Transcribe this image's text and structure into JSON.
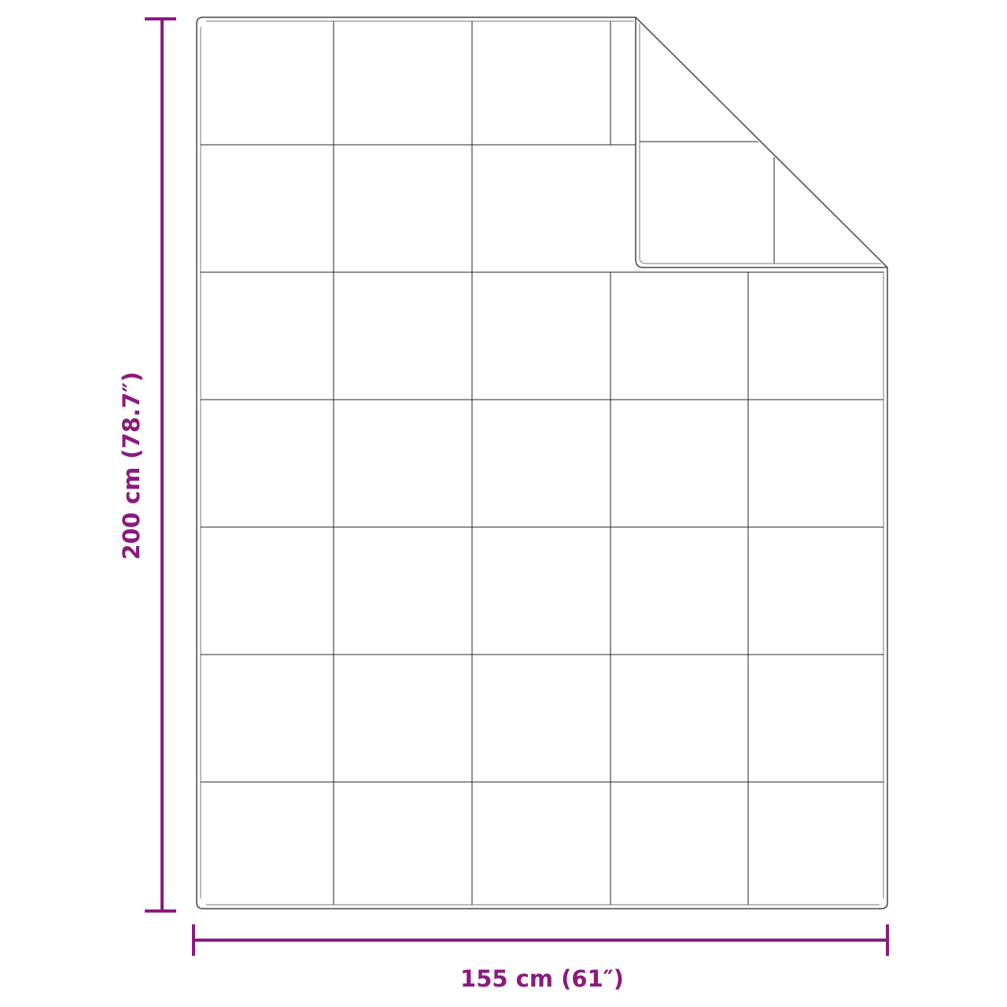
{
  "colors": {
    "dimension": "#8B1A7E",
    "outline": "#333333",
    "stitch": "#222222"
  },
  "dimensions": {
    "height_label": "200 cm (78.7″)",
    "width_label": "155 cm (61″)"
  }
}
